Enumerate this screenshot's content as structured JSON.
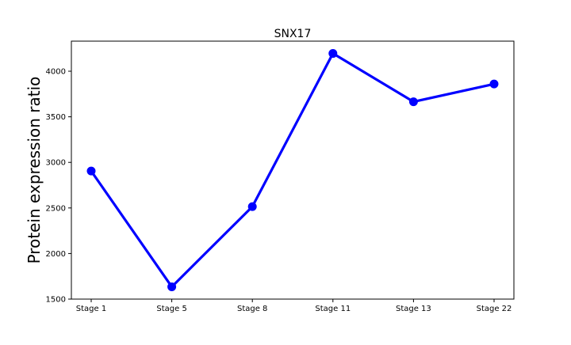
{
  "chart_data": {
    "type": "line",
    "title": "SNX17",
    "xlabel": "",
    "ylabel": "Protein expression ratio",
    "categories": [
      "Stage 1",
      "Stage 5",
      "Stage 8",
      "Stage 11",
      "Stage 13",
      "Stage 22"
    ],
    "series": [
      {
        "values": [
          2905,
          1635,
          2515,
          4195,
          3665,
          3860
        ],
        "color": "#0000ff"
      }
    ],
    "ylim": [
      1500,
      4330
    ],
    "yticks": [
      1500,
      2000,
      2500,
      3000,
      3500,
      4000
    ],
    "grid": false,
    "legend": "none"
  }
}
